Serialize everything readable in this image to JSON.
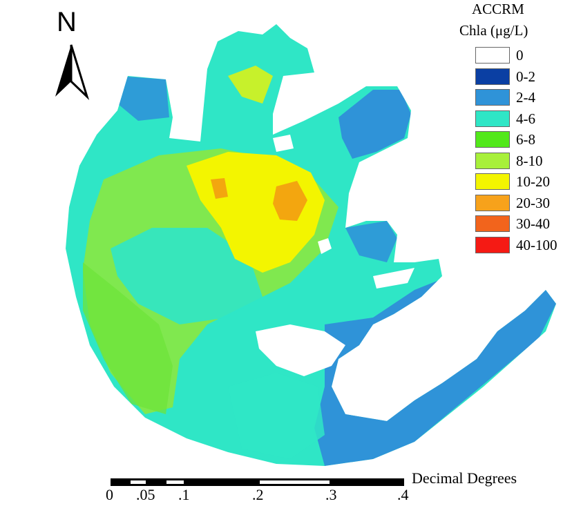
{
  "legend": {
    "title_line1": "ACCRM",
    "title_line2": "Chla (μg/L)",
    "items": [
      {
        "label": "0",
        "color": "#ffffff"
      },
      {
        "label": "0-2",
        "color": "#0a3fa3"
      },
      {
        "label": "2-4",
        "color": "#2f93d8"
      },
      {
        "label": "4-6",
        "color": "#2fe6c6"
      },
      {
        "label": "6-8",
        "color": "#52e81a"
      },
      {
        "label": "8-10",
        "color": "#a8f03a"
      },
      {
        "label": "10-20",
        "color": "#f3f500"
      },
      {
        "label": "20-30",
        "color": "#f7a21b"
      },
      {
        "label": "30-40",
        "color": "#f2641c"
      },
      {
        "label": "40-100",
        "color": "#f51a14"
      }
    ]
  },
  "north_arrow": {
    "label": "N"
  },
  "scale_bar": {
    "units": "Decimal Degrees",
    "ticks": [
      "0",
      ".05",
      ".1",
      ".2",
      ".3",
      ".4"
    ]
  },
  "map": {
    "description_colors": {
      "low": "#2f93d8",
      "mid": "#2fe6c6",
      "high": "#a8f03a",
      "peak": "#f3f500"
    }
  }
}
